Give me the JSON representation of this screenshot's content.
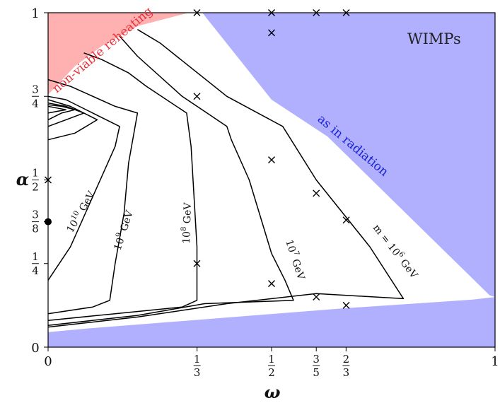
{
  "colors": {
    "wimps_region": "#b0b0ff",
    "nonviable_region": "#ffb0b0",
    "contour_line": "#000000",
    "radiation_text": "#1a22d6",
    "nonviable_text": "#e8303a"
  },
  "chart_data": {
    "type": "contour",
    "xlabel": "ω",
    "ylabel": "α",
    "xlim": [
      0,
      1
    ],
    "ylim": [
      0,
      1
    ],
    "grid": false,
    "x_ticks": [
      {
        "value": 0,
        "label": "0"
      },
      {
        "value": 0.3333,
        "num": "1",
        "den": "3"
      },
      {
        "value": 0.5,
        "num": "1",
        "den": "2"
      },
      {
        "value": 0.6,
        "num": "3",
        "den": "5"
      },
      {
        "value": 0.6667,
        "num": "2",
        "den": "3"
      },
      {
        "value": 1,
        "label": "1"
      }
    ],
    "y_ticks": [
      {
        "value": 0,
        "label": "0"
      },
      {
        "value": 0.25,
        "num": "1",
        "den": "4"
      },
      {
        "value": 0.375,
        "num": "3",
        "den": "8"
      },
      {
        "value": 0.5,
        "num": "1",
        "den": "2"
      },
      {
        "value": 0.75,
        "num": "3",
        "den": "4"
      },
      {
        "value": 1,
        "label": "1"
      }
    ],
    "regions": [
      {
        "name": "WIMPs",
        "label": "WIMPs",
        "polygon": [
          [
            0.345,
            1.0
          ],
          [
            1.0,
            1.0
          ],
          [
            1.0,
            0.15
          ],
          [
            0.988,
            0.155
          ],
          [
            0.625,
            0.63
          ],
          [
            0.5,
            0.74
          ],
          [
            0.345,
            1.0
          ]
        ]
      },
      {
        "name": "as in radiation",
        "label": "as in radiation",
        "polygon": [
          [
            0,
            0
          ],
          [
            1,
            0
          ],
          [
            1,
            0.15
          ],
          [
            0.95,
            0.142
          ],
          [
            0.65,
            0.115
          ],
          [
            0.3,
            0.078
          ],
          [
            0.1,
            0.057
          ],
          [
            0,
            0.045
          ]
        ]
      },
      {
        "name": "non-viable reheating",
        "label": "non-viable reheating",
        "polygon": [
          [
            0,
            1
          ],
          [
            0.315,
            1
          ],
          [
            0.2,
            0.96
          ],
          [
            0.12,
            0.9
          ],
          [
            0.06,
            0.84
          ],
          [
            0,
            0.755
          ]
        ]
      }
    ],
    "contours": [
      {
        "label": "m = 10",
        "exp": "6",
        "unit": " GeV",
        "points": [
          [
            0,
            0.06
          ],
          [
            0.2,
            0.09
          ],
          [
            0.4,
            0.13
          ],
          [
            0.6,
            0.16
          ],
          [
            0.795,
            0.145
          ],
          [
            0.72,
            0.3
          ],
          [
            0.6,
            0.5
          ],
          [
            0.525,
            0.66
          ],
          [
            0.4,
            0.75
          ],
          [
            0.25,
            0.91
          ],
          [
            0.2,
            0.95
          ]
        ]
      },
      {
        "label": "10",
        "exp": "7",
        "unit": " GeV",
        "points": [
          [
            0,
            0.065
          ],
          [
            0.2,
            0.095
          ],
          [
            0.35,
            0.13
          ],
          [
            0.549,
            0.14
          ],
          [
            0.53,
            0.2
          ],
          [
            0.5,
            0.28
          ],
          [
            0.45,
            0.5
          ],
          [
            0.41,
            0.62
          ],
          [
            0.4,
            0.66
          ],
          [
            0.3,
            0.75
          ],
          [
            0.2,
            0.87
          ],
          [
            0.16,
            0.93
          ]
        ]
      },
      {
        "label": "10",
        "exp": "8",
        "unit": " GeV",
        "points": [
          [
            0,
            0.08
          ],
          [
            0.15,
            0.1
          ],
          [
            0.3,
            0.12
          ],
          [
            0.333,
            0.14
          ],
          [
            0.333,
            0.3
          ],
          [
            0.32,
            0.6
          ],
          [
            0.31,
            0.7
          ],
          [
            0.22,
            0.78
          ],
          [
            0.18,
            0.82
          ],
          [
            0.12,
            0.86
          ],
          [
            0.08,
            0.88
          ]
        ]
      },
      {
        "label": "10",
        "exp": "9",
        "unit": " GeV",
        "points": [
          [
            0,
            0.1
          ],
          [
            0.1,
            0.12
          ],
          [
            0.138,
            0.14
          ],
          [
            0.15,
            0.25
          ],
          [
            0.17,
            0.4
          ],
          [
            0.18,
            0.55
          ],
          [
            0.2,
            0.7
          ],
          [
            0.15,
            0.72
          ],
          [
            0.05,
            0.78
          ],
          [
            0,
            0.8
          ]
        ]
      },
      {
        "label": "10",
        "exp": "10",
        "unit": " GeV",
        "points": [
          [
            0,
            0.2
          ],
          [
            0.05,
            0.3
          ],
          [
            0.1,
            0.45
          ],
          [
            0.15,
            0.6
          ],
          [
            0.16,
            0.66
          ],
          [
            0.1,
            0.7
          ],
          [
            0.04,
            0.74
          ],
          [
            0,
            0.75
          ]
        ]
      },
      {
        "points": [
          [
            0,
            0.62
          ],
          [
            0.06,
            0.64
          ],
          [
            0.11,
            0.68
          ],
          [
            0.05,
            0.72
          ],
          [
            0,
            0.74
          ]
        ]
      },
      {
        "points": [
          [
            0,
            0.66
          ],
          [
            0.04,
            0.68
          ],
          [
            0.08,
            0.7
          ],
          [
            0.04,
            0.72
          ],
          [
            0,
            0.73
          ]
        ]
      },
      {
        "points": [
          [
            0,
            0.68
          ],
          [
            0.03,
            0.7
          ],
          [
            0.06,
            0.71
          ],
          [
            0.03,
            0.72
          ],
          [
            0,
            0.725
          ]
        ]
      },
      {
        "points": [
          [
            0,
            0.7
          ],
          [
            0.02,
            0.705
          ],
          [
            0.04,
            0.71
          ],
          [
            0.02,
            0.715
          ],
          [
            0,
            0.72
          ]
        ]
      }
    ],
    "cross_markers": [
      [
        0.333,
        1.0
      ],
      [
        0.5,
        1.0
      ],
      [
        0.6,
        1.0
      ],
      [
        0.667,
        1.0
      ],
      [
        0.5,
        0.94
      ],
      [
        0.333,
        0.75
      ],
      [
        0.5,
        0.56
      ],
      [
        0.6,
        0.46
      ],
      [
        0.667,
        0.38
      ],
      [
        0.333,
        0.25
      ],
      [
        0.5,
        0.19
      ],
      [
        0.6,
        0.15
      ],
      [
        0.667,
        0.125
      ],
      [
        0,
        0.5
      ]
    ],
    "dot_markers": [
      [
        0,
        0.375
      ]
    ]
  }
}
